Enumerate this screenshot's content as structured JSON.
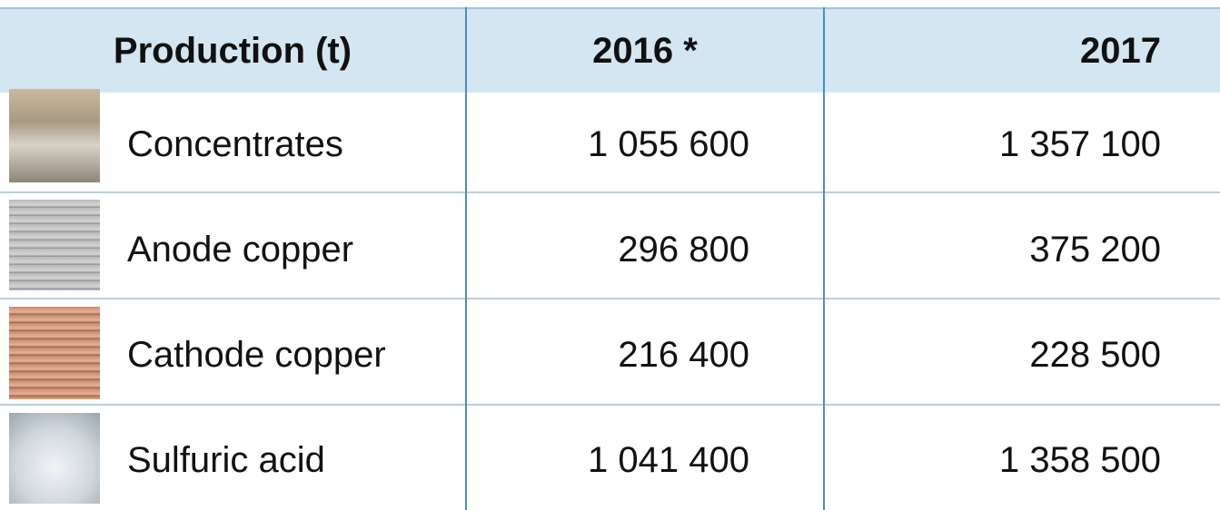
{
  "table": {
    "header": [
      "Production (t)",
      "2016 *",
      "2017"
    ],
    "rows": [
      [
        "Concentrates",
        "1 055 600",
        "1 357 100"
      ],
      [
        "Anode copper",
        "296 800",
        "375 200"
      ],
      [
        "Cathode copper",
        "216 400",
        "228 500"
      ],
      [
        "Sulfuric acid",
        "1 041 400",
        "1 358 500"
      ]
    ]
  }
}
